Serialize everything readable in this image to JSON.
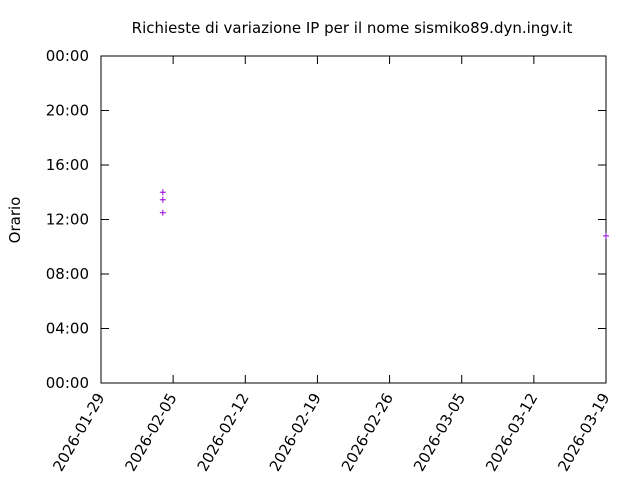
{
  "chart_data": {
    "type": "scatter",
    "title": "Richieste di variazione IP per il nome sismiko89.dyn.ingv.it",
    "y_label": "Orario",
    "series": [
      {
        "color": "#9400d3",
        "x": [
          "2026-02-04",
          "2026-02-04",
          "2026-02-04",
          "2026-03-19"
        ],
        "values": [
          14.0,
          13.45,
          12.5,
          10.8
        ]
      }
    ],
    "xlim": [
      "2026-01-29",
      "2026-03-19"
    ],
    "xticks": [
      "2026-01-29",
      "2026-02-05",
      "2026-02-12",
      "2026-02-19",
      "2026-02-26",
      "2026-03-05",
      "2026-03-12",
      "2026-03-19"
    ],
    "ylim": [
      0,
      24
    ],
    "yticks": [
      {
        "value": 0,
        "label": "00:00"
      },
      {
        "value": 4,
        "label": "04:00"
      },
      {
        "value": 8,
        "label": "08:00"
      },
      {
        "value": 12,
        "label": "12:00"
      },
      {
        "value": 16,
        "label": "16:00"
      },
      {
        "value": 20,
        "label": "20:00"
      },
      {
        "value": 24,
        "label": "00:00"
      }
    ],
    "grid": false
  }
}
